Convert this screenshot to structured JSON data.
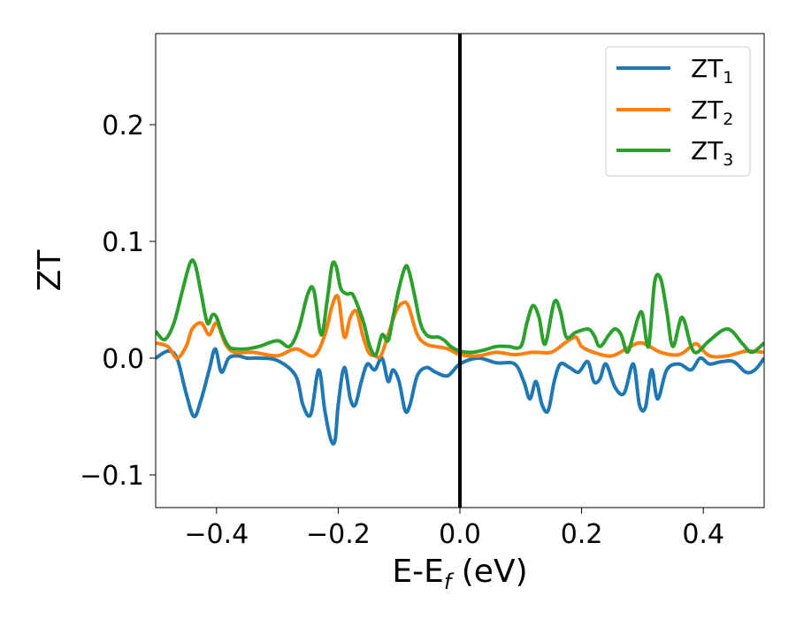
{
  "chart_data": {
    "type": "line",
    "xlabel": "E-E",
    "xlabel_sub": "f",
    "xlabel_unit": " (eV)",
    "ylabel": "ZT",
    "xlim": [
      -0.5,
      0.5
    ],
    "ylim": [
      -0.128,
      0.278
    ],
    "x_ticks": [
      -0.4,
      -0.2,
      0.0,
      0.2,
      0.4
    ],
    "x_tick_labels": [
      "−0.4",
      "−0.2",
      "0.0",
      "0.2",
      "0.4"
    ],
    "y_ticks": [
      -0.1,
      0.0,
      0.1,
      0.2
    ],
    "y_tick_labels": [
      "−0.1",
      "0.0",
      "0.1",
      "0.2"
    ],
    "grid": false,
    "legend_position": "top-right",
    "vertical_line_x": 0.0,
    "vertical_line_color": "#000000",
    "series": [
      {
        "name": "ZT",
        "name_sub": "1",
        "color": "#1f77b4",
        "x": [
          -0.5,
          -0.48,
          -0.465,
          -0.45,
          -0.437,
          -0.425,
          -0.412,
          -0.402,
          -0.392,
          -0.38,
          -0.365,
          -0.35,
          -0.33,
          -0.3,
          -0.27,
          -0.258,
          -0.245,
          -0.232,
          -0.222,
          -0.212,
          -0.205,
          -0.2,
          -0.19,
          -0.18,
          -0.172,
          -0.162,
          -0.152,
          -0.14,
          -0.128,
          -0.118,
          -0.11,
          -0.1,
          -0.09,
          -0.082,
          -0.07,
          -0.055,
          -0.04,
          -0.02,
          0.0,
          0.03,
          0.06,
          0.09,
          0.105,
          0.115,
          0.125,
          0.135,
          0.145,
          0.155,
          0.165,
          0.18,
          0.195,
          0.21,
          0.22,
          0.23,
          0.24,
          0.255,
          0.27,
          0.285,
          0.295,
          0.305,
          0.315,
          0.325,
          0.34,
          0.36,
          0.38,
          0.395,
          0.41,
          0.43,
          0.45,
          0.47,
          0.485,
          0.5
        ],
        "y": [
          0.0,
          0.006,
          0.0,
          -0.03,
          -0.05,
          -0.035,
          -0.01,
          0.008,
          -0.012,
          0.0,
          0.002,
          0.0,
          0.0,
          -0.002,
          -0.015,
          -0.04,
          -0.048,
          -0.01,
          -0.045,
          -0.07,
          -0.07,
          -0.04,
          -0.008,
          -0.035,
          -0.04,
          -0.02,
          -0.005,
          -0.01,
          0.0,
          -0.02,
          -0.01,
          -0.02,
          -0.045,
          -0.04,
          -0.015,
          -0.008,
          -0.012,
          -0.015,
          -0.005,
          0.0,
          -0.004,
          -0.005,
          -0.02,
          -0.035,
          -0.02,
          -0.04,
          -0.045,
          -0.02,
          -0.005,
          -0.008,
          -0.012,
          -0.003,
          -0.02,
          -0.018,
          -0.005,
          -0.025,
          -0.03,
          -0.005,
          -0.04,
          -0.042,
          -0.01,
          -0.035,
          -0.01,
          -0.005,
          -0.01,
          0.0,
          -0.005,
          -0.003,
          -0.003,
          -0.012,
          -0.01,
          0.0
        ]
      },
      {
        "name": "ZT",
        "name_sub": "2",
        "color": "#ff7f0e",
        "x": [
          -0.5,
          -0.48,
          -0.465,
          -0.45,
          -0.44,
          -0.425,
          -0.412,
          -0.4,
          -0.385,
          -0.37,
          -0.34,
          -0.3,
          -0.27,
          -0.24,
          -0.222,
          -0.21,
          -0.2,
          -0.19,
          -0.18,
          -0.17,
          -0.16,
          -0.15,
          -0.14,
          -0.13,
          -0.118,
          -0.105,
          -0.095,
          -0.085,
          -0.07,
          -0.055,
          -0.04,
          -0.02,
          0.0,
          0.03,
          0.06,
          0.09,
          0.12,
          0.15,
          0.17,
          0.19,
          0.2,
          0.22,
          0.25,
          0.28,
          0.3,
          0.33,
          0.36,
          0.38,
          0.39,
          0.41,
          0.44,
          0.47,
          0.5
        ],
        "y": [
          0.013,
          0.01,
          0.0,
          0.01,
          0.025,
          0.03,
          0.02,
          0.03,
          0.012,
          0.005,
          0.005,
          0.002,
          0.008,
          0.002,
          0.02,
          0.045,
          0.052,
          0.018,
          0.035,
          0.04,
          0.02,
          0.005,
          0.002,
          0.002,
          0.02,
          0.04,
          0.047,
          0.045,
          0.02,
          0.012,
          0.01,
          0.008,
          0.003,
          0.002,
          0.005,
          0.003,
          0.005,
          0.005,
          0.012,
          0.018,
          0.01,
          0.005,
          0.002,
          0.01,
          0.013,
          0.005,
          0.003,
          0.01,
          0.012,
          0.002,
          0.002,
          0.006,
          0.005
        ]
      },
      {
        "name": "ZT",
        "name_sub": "3",
        "color": "#2ca02c",
        "x": [
          -0.5,
          -0.485,
          -0.47,
          -0.455,
          -0.443,
          -0.435,
          -0.425,
          -0.415,
          -0.407,
          -0.4,
          -0.39,
          -0.38,
          -0.37,
          -0.35,
          -0.33,
          -0.3,
          -0.28,
          -0.265,
          -0.25,
          -0.24,
          -0.228,
          -0.218,
          -0.21,
          -0.203,
          -0.196,
          -0.186,
          -0.177,
          -0.168,
          -0.158,
          -0.148,
          -0.138,
          -0.128,
          -0.118,
          -0.11,
          -0.1,
          -0.09,
          -0.084,
          -0.075,
          -0.065,
          -0.055,
          -0.045,
          -0.035,
          -0.025,
          -0.015,
          0.0,
          0.02,
          0.04,
          0.06,
          0.08,
          0.1,
          0.11,
          0.12,
          0.13,
          0.14,
          0.155,
          0.165,
          0.175,
          0.19,
          0.21,
          0.22,
          0.23,
          0.245,
          0.255,
          0.265,
          0.275,
          0.285,
          0.293,
          0.3,
          0.31,
          0.32,
          0.33,
          0.34,
          0.35,
          0.365,
          0.38,
          0.39,
          0.41,
          0.44,
          0.465,
          0.48,
          0.5
        ],
        "y": [
          0.023,
          0.016,
          0.03,
          0.06,
          0.082,
          0.08,
          0.055,
          0.03,
          0.037,
          0.035,
          0.02,
          0.01,
          0.008,
          0.008,
          0.01,
          0.015,
          0.01,
          0.025,
          0.055,
          0.058,
          0.02,
          0.05,
          0.08,
          0.078,
          0.06,
          0.055,
          0.055,
          0.045,
          0.03,
          0.01,
          0.003,
          0.02,
          0.015,
          0.035,
          0.06,
          0.078,
          0.075,
          0.055,
          0.03,
          0.02,
          0.018,
          0.018,
          0.015,
          0.01,
          0.006,
          0.005,
          0.007,
          0.01,
          0.01,
          0.01,
          0.03,
          0.045,
          0.035,
          0.012,
          0.048,
          0.04,
          0.018,
          0.022,
          0.025,
          0.02,
          0.01,
          0.02,
          0.025,
          0.02,
          0.005,
          0.02,
          0.035,
          0.038,
          0.01,
          0.065,
          0.068,
          0.04,
          0.01,
          0.035,
          0.01,
          0.005,
          0.015,
          0.025,
          0.012,
          0.005,
          0.013
        ]
      }
    ]
  }
}
